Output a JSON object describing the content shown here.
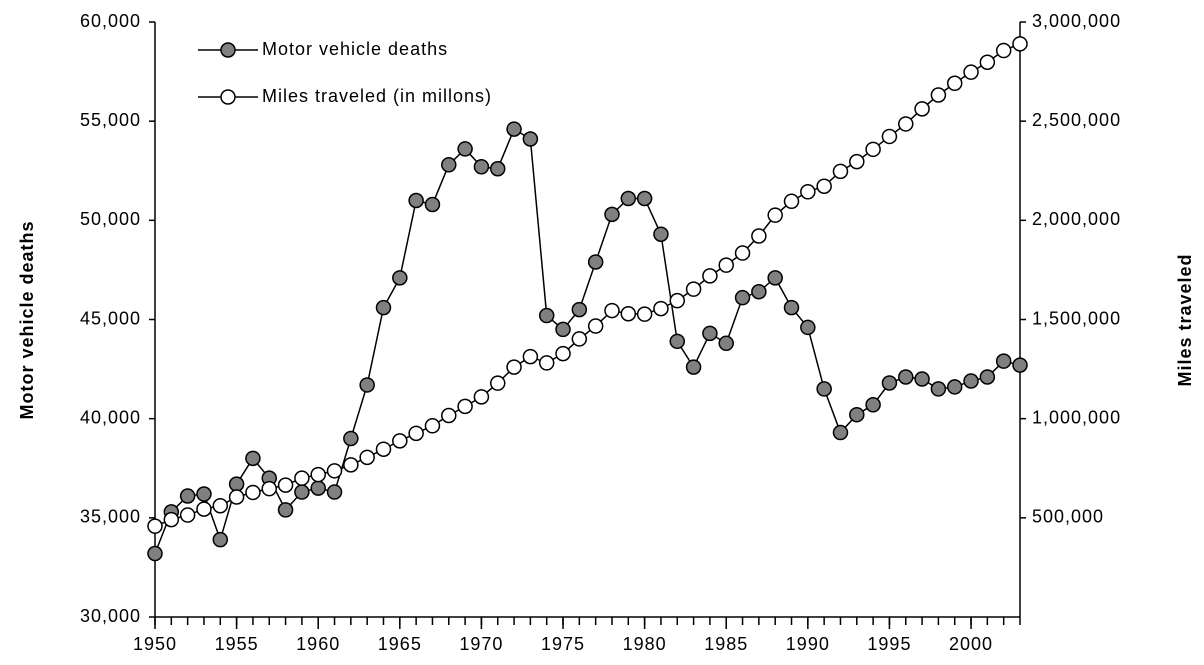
{
  "chart_data": {
    "type": "line",
    "x": [
      1950,
      1951,
      1952,
      1953,
      1954,
      1955,
      1956,
      1957,
      1958,
      1959,
      1960,
      1961,
      1962,
      1963,
      1964,
      1965,
      1966,
      1967,
      1968,
      1969,
      1970,
      1971,
      1972,
      1973,
      1974,
      1975,
      1976,
      1977,
      1978,
      1979,
      1980,
      1981,
      1982,
      1983,
      1984,
      1985,
      1986,
      1987,
      1988,
      1989,
      1990,
      1991,
      1992,
      1993,
      1994,
      1995,
      1996,
      1997,
      1998,
      1999,
      2000,
      2001,
      2002,
      2003
    ],
    "series": [
      {
        "name": "Motor vehicle deaths",
        "color": "#808080",
        "axis": "y",
        "values": [
          33200,
          35300,
          36100,
          36200,
          33900,
          36700,
          38000,
          37000,
          35400,
          36300,
          36500,
          36300,
          39000,
          41700,
          45600,
          47100,
          51000,
          50800,
          52800,
          53600,
          52700,
          52600,
          54600,
          54100,
          45200,
          44500,
          45500,
          47900,
          50300,
          51100,
          51100,
          49300,
          43900,
          42600,
          44300,
          43800,
          46100,
          46400,
          47100,
          45600,
          44600,
          41500,
          39300,
          40200,
          40700,
          41800,
          42100,
          42000,
          41500,
          41600,
          41900,
          42100,
          42900,
          42700
        ]
      },
      {
        "name": "Miles traveled (in millons)",
        "color": "#ffffff",
        "axis": "y2",
        "values": [
          458000,
          491000,
          514000,
          544000,
          561000,
          605000,
          628000,
          647000,
          665000,
          700000,
          718000,
          737000,
          767000,
          805000,
          846000,
          888000,
          926000,
          964000,
          1016000,
          1062000,
          1110000,
          1179000,
          1260000,
          1313000,
          1281000,
          1328000,
          1402000,
          1467000,
          1545000,
          1529000,
          1527000,
          1555000,
          1595000,
          1653000,
          1720000,
          1774000,
          1835000,
          1921000,
          2026000,
          2096000,
          2144000,
          2172000,
          2247000,
          2296000,
          2358000,
          2423000,
          2486000,
          2562000,
          2632000,
          2691000,
          2747000,
          2797000,
          2856000,
          2890000
        ]
      }
    ],
    "ylabel": "Motor vehicle deaths",
    "y2label": "Miles traveled",
    "xlim": [
      1950,
      2003
    ],
    "xticks": [
      1950,
      1955,
      1960,
      1965,
      1970,
      1975,
      1980,
      1985,
      1990,
      1995,
      2000
    ],
    "ylim": [
      30000,
      60000
    ],
    "yticks": [
      {
        "value": 30000,
        "label": "30,000"
      },
      {
        "value": 35000,
        "label": "35,000"
      },
      {
        "value": 40000,
        "label": "40,000"
      },
      {
        "value": 45000,
        "label": "45,000"
      },
      {
        "value": 50000,
        "label": "50,000"
      },
      {
        "value": 55000,
        "label": "55,000"
      },
      {
        "value": 60000,
        "label": "60,000"
      }
    ],
    "y2lim": [
      0,
      3000000
    ],
    "y2ticks": [
      {
        "value": 500000,
        "label": "500,000"
      },
      {
        "value": 1000000,
        "label": "1,000,000"
      },
      {
        "value": 1500000,
        "label": "1,500,000"
      },
      {
        "value": 2000000,
        "label": "2,000,000"
      },
      {
        "value": 2500000,
        "label": "2,500,000"
      },
      {
        "value": 3000000,
        "label": "3,000,000"
      }
    ],
    "grid": false,
    "legend": "upper left"
  }
}
